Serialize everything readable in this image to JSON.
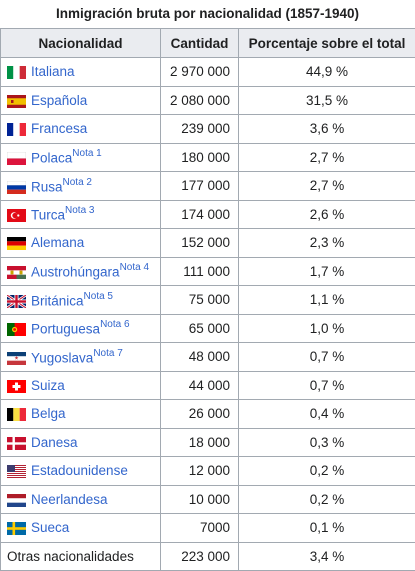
{
  "caption": "Inmigración bruta por nacionalidad (1857-1940)",
  "headers": [
    "Nacionalidad",
    "Cantidad",
    "Porcentaje sobre el total"
  ],
  "rows": [
    {
      "name": "Italiana",
      "note": "",
      "qty": "2 970 000",
      "pct": "44,9 %",
      "flag": "italy-flag-icon"
    },
    {
      "name": "Española",
      "note": "",
      "qty": "2 080 000",
      "pct": "31,5 %",
      "flag": "spain-flag-icon"
    },
    {
      "name": "Francesa",
      "note": "",
      "qty": "239 000",
      "pct": "3,6 %",
      "flag": "france-flag-icon"
    },
    {
      "name": "Polaca",
      "note": "Nota 1",
      "qty": "180 000",
      "pct": "2,7 %",
      "flag": "poland-flag-icon"
    },
    {
      "name": "Rusa",
      "note": "Nota 2",
      "qty": "177 000",
      "pct": "2,7 %",
      "flag": "russia-flag-icon"
    },
    {
      "name": "Turca",
      "note": "Nota 3",
      "qty": "174 000",
      "pct": "2,6 %",
      "flag": "turkey-flag-icon"
    },
    {
      "name": "Alemana",
      "note": "",
      "qty": "152 000",
      "pct": "2,3 %",
      "flag": "germany-flag-icon"
    },
    {
      "name": "Austrohúngara",
      "note": "Nota 4",
      "qty": "111 000",
      "pct": "1,7 %",
      "flag": "austria-hungary-flag-icon"
    },
    {
      "name": "Británica",
      "note": "Nota 5",
      "qty": "75 000",
      "pct": "1,1 %",
      "flag": "uk-flag-icon"
    },
    {
      "name": "Portuguesa",
      "note": "Nota 6",
      "qty": "65 000",
      "pct": "1,0 %",
      "flag": "portugal-flag-icon"
    },
    {
      "name": "Yugoslava",
      "note": "Nota 7",
      "qty": "48 000",
      "pct": "0,7 %",
      "flag": "yugoslavia-flag-icon"
    },
    {
      "name": "Suiza",
      "note": "",
      "qty": "44 000",
      "pct": "0,7 %",
      "flag": "switzerland-flag-icon"
    },
    {
      "name": "Belga",
      "note": "",
      "qty": "26 000",
      "pct": "0,4 %",
      "flag": "belgium-flag-icon"
    },
    {
      "name": "Danesa",
      "note": "",
      "qty": "18 000",
      "pct": "0,3 %",
      "flag": "denmark-flag-icon"
    },
    {
      "name": "Estadounidense",
      "note": "",
      "qty": "12 000",
      "pct": "0,2 %",
      "flag": "usa-flag-icon"
    },
    {
      "name": "Neerlandesa",
      "note": "",
      "qty": "10 000",
      "pct": "0,2 %",
      "flag": "netherlands-flag-icon"
    },
    {
      "name": "Sueca",
      "note": "",
      "qty": "7000",
      "pct": "0,1 %",
      "flag": "sweden-flag-icon"
    }
  ],
  "other_row": {
    "name": "Otras nacionalidades",
    "qty": "223 000",
    "pct": "3,4 %"
  },
  "colors": {
    "link": "#3366cc",
    "header_bg": "#eaecf0",
    "border": "#a2a9b1"
  }
}
